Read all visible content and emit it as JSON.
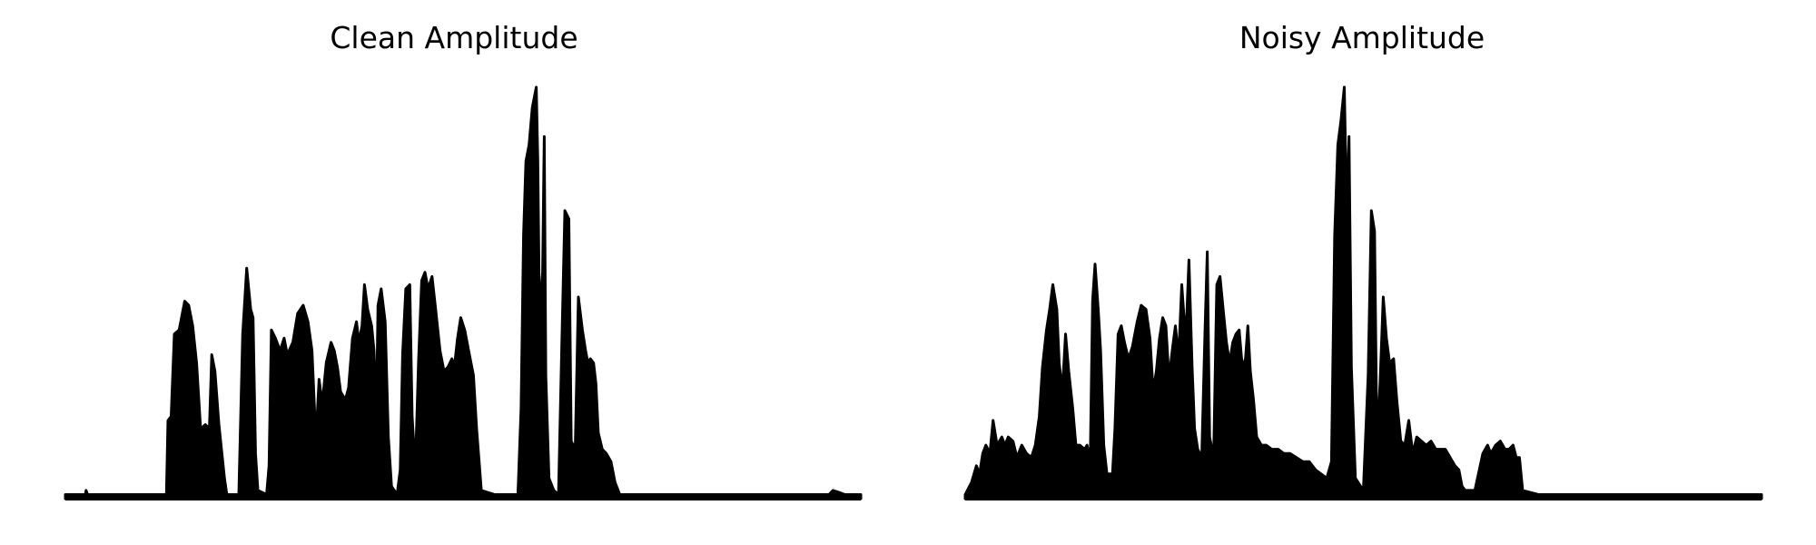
{
  "chart_data": [
    {
      "type": "area",
      "title": "Clean Amplitude",
      "xlabel": "",
      "ylabel": "",
      "axes_visible": false,
      "grid": false,
      "color": "#000000",
      "xlim": [
        0,
        1
      ],
      "ylim": [
        0,
        1
      ],
      "envelope": [
        [
          0.0,
          0.01
        ],
        [
          0.025,
          0.01
        ],
        [
          0.026,
          0.02
        ],
        [
          0.028,
          0.01
        ],
        [
          0.127,
          0.01
        ],
        [
          0.129,
          0.19
        ],
        [
          0.133,
          0.2
        ],
        [
          0.137,
          0.4
        ],
        [
          0.143,
          0.41
        ],
        [
          0.15,
          0.48
        ],
        [
          0.155,
          0.47
        ],
        [
          0.16,
          0.42
        ],
        [
          0.165,
          0.33
        ],
        [
          0.17,
          0.17
        ],
        [
          0.176,
          0.18
        ],
        [
          0.181,
          0.17
        ],
        [
          0.184,
          0.35
        ],
        [
          0.188,
          0.31
        ],
        [
          0.193,
          0.18
        ],
        [
          0.2,
          0.05
        ],
        [
          0.203,
          0.01
        ],
        [
          0.218,
          0.01
        ],
        [
          0.223,
          0.4
        ],
        [
          0.228,
          0.56
        ],
        [
          0.233,
          0.46
        ],
        [
          0.236,
          0.44
        ],
        [
          0.239,
          0.11
        ],
        [
          0.242,
          0.02
        ],
        [
          0.253,
          0.01
        ],
        [
          0.256,
          0.08
        ],
        [
          0.259,
          0.41
        ],
        [
          0.264,
          0.39
        ],
        [
          0.27,
          0.36
        ],
        [
          0.275,
          0.39
        ],
        [
          0.279,
          0.35
        ],
        [
          0.286,
          0.38
        ],
        [
          0.292,
          0.45
        ],
        [
          0.299,
          0.47
        ],
        [
          0.305,
          0.43
        ],
        [
          0.31,
          0.36
        ],
        [
          0.315,
          0.14
        ],
        [
          0.319,
          0.29
        ],
        [
          0.323,
          0.23
        ],
        [
          0.328,
          0.33
        ],
        [
          0.334,
          0.38
        ],
        [
          0.338,
          0.36
        ],
        [
          0.342,
          0.32
        ],
        [
          0.346,
          0.26
        ],
        [
          0.352,
          0.24
        ],
        [
          0.356,
          0.27
        ],
        [
          0.361,
          0.39
        ],
        [
          0.366,
          0.43
        ],
        [
          0.369,
          0.38
        ],
        [
          0.373,
          0.42
        ],
        [
          0.376,
          0.52
        ],
        [
          0.38,
          0.46
        ],
        [
          0.385,
          0.42
        ],
        [
          0.388,
          0.36
        ],
        [
          0.391,
          0.2
        ],
        [
          0.393,
          0.47
        ],
        [
          0.397,
          0.51
        ],
        [
          0.402,
          0.43
        ],
        [
          0.406,
          0.15
        ],
        [
          0.41,
          0.03
        ],
        [
          0.417,
          0.01
        ],
        [
          0.421,
          0.07
        ],
        [
          0.424,
          0.35
        ],
        [
          0.428,
          0.51
        ],
        [
          0.433,
          0.52
        ],
        [
          0.436,
          0.2
        ],
        [
          0.44,
          0.07
        ],
        [
          0.444,
          0.33
        ],
        [
          0.448,
          0.53
        ],
        [
          0.452,
          0.55
        ],
        [
          0.456,
          0.51
        ],
        [
          0.461,
          0.54
        ],
        [
          0.465,
          0.47
        ],
        [
          0.471,
          0.36
        ],
        [
          0.476,
          0.31
        ],
        [
          0.481,
          0.32
        ],
        [
          0.486,
          0.34
        ],
        [
          0.489,
          0.32
        ],
        [
          0.493,
          0.39
        ],
        [
          0.497,
          0.44
        ],
        [
          0.502,
          0.41
        ],
        [
          0.507,
          0.36
        ],
        [
          0.513,
          0.3
        ],
        [
          0.517,
          0.17
        ],
        [
          0.523,
          0.02
        ],
        [
          0.54,
          0.01
        ],
        [
          0.569,
          0.01
        ],
        [
          0.573,
          0.22
        ],
        [
          0.576,
          0.64
        ],
        [
          0.579,
          0.82
        ],
        [
          0.583,
          0.86
        ],
        [
          0.587,
          0.95
        ],
        [
          0.592,
          1.0
        ],
        [
          0.594,
          0.82
        ],
        [
          0.596,
          0.45
        ],
        [
          0.6,
          0.55
        ],
        [
          0.602,
          0.88
        ],
        [
          0.604,
          0.3
        ],
        [
          0.608,
          0.05
        ],
        [
          0.614,
          0.02
        ],
        [
          0.62,
          0.01
        ],
        [
          0.624,
          0.36
        ],
        [
          0.628,
          0.7
        ],
        [
          0.633,
          0.68
        ],
        [
          0.636,
          0.14
        ],
        [
          0.641,
          0.12
        ],
        [
          0.645,
          0.49
        ],
        [
          0.65,
          0.41
        ],
        [
          0.654,
          0.36
        ],
        [
          0.657,
          0.33
        ],
        [
          0.66,
          0.34
        ],
        [
          0.664,
          0.33
        ],
        [
          0.667,
          0.28
        ],
        [
          0.67,
          0.16
        ],
        [
          0.675,
          0.12
        ],
        [
          0.68,
          0.11
        ],
        [
          0.686,
          0.09
        ],
        [
          0.691,
          0.04
        ],
        [
          0.697,
          0.01
        ],
        [
          0.78,
          0.01
        ],
        [
          0.795,
          0.01
        ],
        [
          0.96,
          0.01
        ],
        [
          0.965,
          0.02
        ],
        [
          0.973,
          0.015
        ],
        [
          0.98,
          0.01
        ],
        [
          1.0,
          0.01
        ]
      ]
    },
    {
      "type": "area",
      "title": "Noisy Amplitude",
      "xlabel": "",
      "ylabel": "",
      "axes_visible": false,
      "grid": false,
      "color": "#000000",
      "xlim": [
        0,
        1
      ],
      "ylim": [
        0,
        1
      ],
      "envelope": [
        [
          0.0,
          0.01
        ],
        [
          0.008,
          0.04
        ],
        [
          0.014,
          0.08
        ],
        [
          0.018,
          0.06
        ],
        [
          0.022,
          0.11
        ],
        [
          0.026,
          0.13
        ],
        [
          0.031,
          0.11
        ],
        [
          0.035,
          0.19
        ],
        [
          0.04,
          0.13
        ],
        [
          0.046,
          0.15
        ],
        [
          0.05,
          0.13
        ],
        [
          0.054,
          0.15
        ],
        [
          0.06,
          0.14
        ],
        [
          0.065,
          0.1
        ],
        [
          0.071,
          0.13
        ],
        [
          0.077,
          0.11
        ],
        [
          0.083,
          0.1
        ],
        [
          0.088,
          0.13
        ],
        [
          0.093,
          0.2
        ],
        [
          0.097,
          0.32
        ],
        [
          0.102,
          0.41
        ],
        [
          0.106,
          0.46
        ],
        [
          0.11,
          0.52
        ],
        [
          0.115,
          0.46
        ],
        [
          0.118,
          0.33
        ],
        [
          0.122,
          0.26
        ],
        [
          0.126,
          0.4
        ],
        [
          0.13,
          0.31
        ],
        [
          0.135,
          0.22
        ],
        [
          0.139,
          0.13
        ],
        [
          0.144,
          0.13
        ],
        [
          0.15,
          0.12
        ],
        [
          0.153,
          0.13
        ],
        [
          0.157,
          0.09
        ],
        [
          0.16,
          0.48
        ],
        [
          0.163,
          0.57
        ],
        [
          0.167,
          0.46
        ],
        [
          0.17,
          0.36
        ],
        [
          0.174,
          0.13
        ],
        [
          0.178,
          0.06
        ],
        [
          0.185,
          0.06
        ],
        [
          0.188,
          0.17
        ],
        [
          0.192,
          0.4
        ],
        [
          0.196,
          0.42
        ],
        [
          0.2,
          0.38
        ],
        [
          0.205,
          0.34
        ],
        [
          0.21,
          0.37
        ],
        [
          0.216,
          0.43
        ],
        [
          0.221,
          0.47
        ],
        [
          0.227,
          0.46
        ],
        [
          0.232,
          0.39
        ],
        [
          0.236,
          0.26
        ],
        [
          0.24,
          0.31
        ],
        [
          0.244,
          0.39
        ],
        [
          0.248,
          0.44
        ],
        [
          0.252,
          0.42
        ],
        [
          0.256,
          0.29
        ],
        [
          0.26,
          0.36
        ],
        [
          0.264,
          0.42
        ],
        [
          0.268,
          0.34
        ],
        [
          0.272,
          0.52
        ],
        [
          0.277,
          0.38
        ],
        [
          0.281,
          0.58
        ],
        [
          0.285,
          0.32
        ],
        [
          0.288,
          0.17
        ],
        [
          0.292,
          0.12
        ],
        [
          0.297,
          0.1
        ],
        [
          0.301,
          0.4
        ],
        [
          0.304,
          0.6
        ],
        [
          0.307,
          0.15
        ],
        [
          0.312,
          0.1
        ],
        [
          0.316,
          0.52
        ],
        [
          0.32,
          0.54
        ],
        [
          0.324,
          0.46
        ],
        [
          0.328,
          0.38
        ],
        [
          0.332,
          0.33
        ],
        [
          0.336,
          0.38
        ],
        [
          0.34,
          0.4
        ],
        [
          0.344,
          0.41
        ],
        [
          0.348,
          0.32
        ],
        [
          0.352,
          0.34
        ],
        [
          0.355,
          0.42
        ],
        [
          0.358,
          0.31
        ],
        [
          0.362,
          0.24
        ],
        [
          0.366,
          0.15
        ],
        [
          0.372,
          0.13
        ],
        [
          0.378,
          0.13
        ],
        [
          0.385,
          0.12
        ],
        [
          0.393,
          0.12
        ],
        [
          0.4,
          0.11
        ],
        [
          0.408,
          0.11
        ],
        [
          0.416,
          0.1
        ],
        [
          0.424,
          0.09
        ],
        [
          0.432,
          0.09
        ],
        [
          0.44,
          0.07
        ],
        [
          0.447,
          0.06
        ],
        [
          0.454,
          0.05
        ],
        [
          0.46,
          0.09
        ],
        [
          0.464,
          0.64
        ],
        [
          0.468,
          0.86
        ],
        [
          0.472,
          0.92
        ],
        [
          0.476,
          1.0
        ],
        [
          0.479,
          0.7
        ],
        [
          0.482,
          0.88
        ],
        [
          0.485,
          0.32
        ],
        [
          0.49,
          0.05
        ],
        [
          0.5,
          0.02
        ],
        [
          0.506,
          0.3
        ],
        [
          0.51,
          0.7
        ],
        [
          0.514,
          0.65
        ],
        [
          0.517,
          0.14
        ],
        [
          0.521,
          0.28
        ],
        [
          0.525,
          0.49
        ],
        [
          0.529,
          0.39
        ],
        [
          0.533,
          0.33
        ],
        [
          0.538,
          0.34
        ],
        [
          0.542,
          0.24
        ],
        [
          0.547,
          0.14
        ],
        [
          0.552,
          0.13
        ],
        [
          0.557,
          0.19
        ],
        [
          0.562,
          0.11
        ],
        [
          0.567,
          0.15
        ],
        [
          0.573,
          0.14
        ],
        [
          0.579,
          0.13
        ],
        [
          0.585,
          0.14
        ],
        [
          0.591,
          0.12
        ],
        [
          0.597,
          0.12
        ],
        [
          0.603,
          0.12
        ],
        [
          0.609,
          0.1
        ],
        [
          0.615,
          0.08
        ],
        [
          0.62,
          0.07
        ],
        [
          0.624,
          0.03
        ],
        [
          0.628,
          0.02
        ],
        [
          0.64,
          0.02
        ],
        [
          0.65,
          0.11
        ],
        [
          0.656,
          0.13
        ],
        [
          0.66,
          0.11
        ],
        [
          0.666,
          0.13
        ],
        [
          0.672,
          0.14
        ],
        [
          0.678,
          0.12
        ],
        [
          0.683,
          0.12
        ],
        [
          0.688,
          0.13
        ],
        [
          0.692,
          0.1
        ],
        [
          0.696,
          0.1
        ],
        [
          0.7,
          0.02
        ],
        [
          0.72,
          0.01
        ],
        [
          0.78,
          0.01
        ],
        [
          0.86,
          0.01
        ],
        [
          0.93,
          0.01
        ],
        [
          1.0,
          0.01
        ]
      ]
    }
  ]
}
